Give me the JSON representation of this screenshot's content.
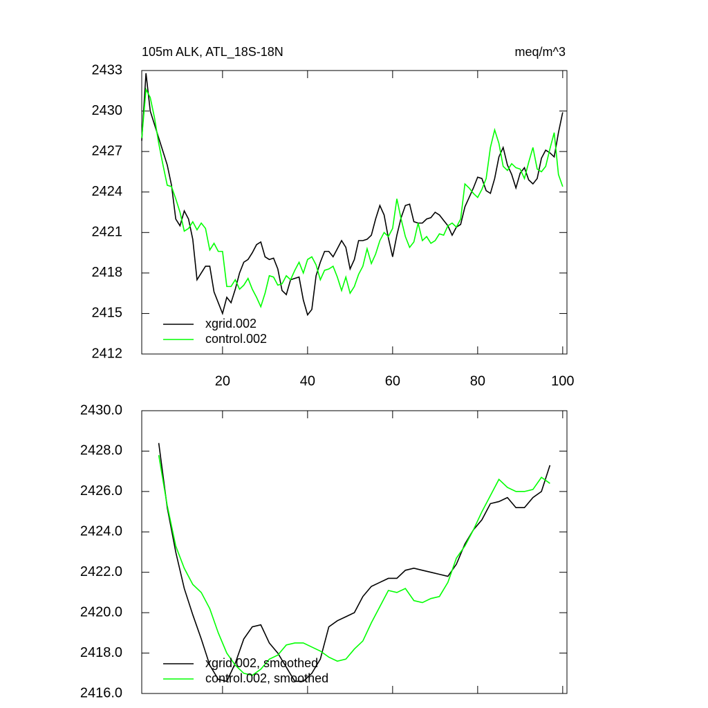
{
  "chart_data": [
    {
      "type": "line",
      "title": "105m ALK, ATL_18S-18N",
      "units": "meq/m^3",
      "x": [
        1,
        2,
        3,
        4,
        5,
        6,
        7,
        8,
        9,
        10,
        11,
        12,
        13,
        14,
        15,
        16,
        17,
        18,
        19,
        20,
        21,
        22,
        23,
        24,
        25,
        26,
        27,
        28,
        29,
        30,
        31,
        32,
        33,
        34,
        35,
        36,
        37,
        38,
        39,
        40,
        41,
        42,
        43,
        44,
        45,
        46,
        47,
        48,
        49,
        50,
        51,
        52,
        53,
        54,
        55,
        56,
        57,
        58,
        59,
        60,
        61,
        62,
        63,
        64,
        65,
        66,
        67,
        68,
        69,
        70,
        71,
        72,
        73,
        74,
        75,
        76,
        77,
        78,
        79,
        80,
        81,
        82,
        83,
        84,
        85,
        86,
        87,
        88,
        89,
        90,
        91,
        92,
        93,
        94,
        95,
        96,
        97,
        98,
        99,
        100
      ],
      "series": [
        {
          "name": "xgrid.002",
          "color": "#000000",
          "values": [
            2427.8,
            2432.8,
            2430,
            2429,
            2428,
            2427,
            2426,
            2424.5,
            2422,
            2421.5,
            2422.6,
            2422,
            2420.5,
            2417.5,
            2418,
            2418.5,
            2418.5,
            2416.6,
            2415.8,
            2415,
            2416.2,
            2415.8,
            2416.8,
            2418,
            2418.8,
            2419,
            2419.5,
            2420.1,
            2420.3,
            2419.2,
            2419,
            2419.1,
            2418.3,
            2416.7,
            2416.4,
            2417.5,
            2417.6,
            2417.7,
            2416,
            2414.9,
            2415.3,
            2417.8,
            2418.8,
            2419.6,
            2419.6,
            2419.2,
            2419.8,
            2420.4,
            2419.9,
            2418.3,
            2419,
            2420.4,
            2420.4,
            2420.5,
            2420.8,
            2422,
            2423,
            2422.3,
            2420.6,
            2419.2,
            2420.8,
            2422.1,
            2423,
            2423.1,
            2421.8,
            2421.7,
            2421.7,
            2422,
            2422.1,
            2422.5,
            2422.3,
            2421.9,
            2421.5,
            2420.8,
            2421.4,
            2421.6,
            2422.9,
            2423.6,
            2424.3,
            2425.1,
            2425,
            2424.1,
            2423.9,
            2425,
            2426.6,
            2427.3,
            2426,
            2425.3,
            2424.3,
            2425.4,
            2425.8,
            2424.9,
            2424.6,
            2425,
            2426.5,
            2427.1,
            2426.9,
            2426.6,
            2428.4,
            2429.9
          ]
        },
        {
          "name": "control.002",
          "color": "#00ff00",
          "values": [
            2428,
            2431.6,
            2431,
            2429.5,
            2427.6,
            2426,
            2424.5,
            2424.4,
            2423.5,
            2422.5,
            2421.1,
            2421.3,
            2421.8,
            2421.2,
            2421.7,
            2421.3,
            2419.7,
            2420.2,
            2419.6,
            2419.6,
            2417,
            2417,
            2417.5,
            2416.8,
            2417.1,
            2417.6,
            2416.8,
            2416.2,
            2415.5,
            2416.5,
            2417.8,
            2417.7,
            2417.1,
            2417.2,
            2417.8,
            2417.5,
            2418.2,
            2418.8,
            2418,
            2419,
            2419.2,
            2418.6,
            2417.5,
            2418.2,
            2418.3,
            2418.5,
            2417.7,
            2416.7,
            2417.7,
            2416.5,
            2417,
            2417.9,
            2418.5,
            2419.8,
            2418.7,
            2419.4,
            2420.4,
            2421,
            2420.7,
            2421.3,
            2423.5,
            2422,
            2420.7,
            2419.9,
            2420.3,
            2421.7,
            2420.4,
            2420.7,
            2420.2,
            2420.4,
            2420.9,
            2420.8,
            2421.5,
            2421.7,
            2421.4,
            2422,
            2424.6,
            2424.3,
            2423.9,
            2423.6,
            2424.2,
            2425,
            2427.3,
            2428.6,
            2427.6,
            2425.9,
            2425.6,
            2426.1,
            2425.8,
            2425.7,
            2425,
            2426.2,
            2427.3,
            2425.7,
            2425.5,
            2425.9,
            2427.2,
            2428.4,
            2425.3,
            2424.4
          ]
        }
      ],
      "xlim": [
        1,
        101
      ],
      "xticks": [
        20,
        40,
        60,
        80,
        100
      ],
      "xtick_labels": true,
      "ylim": [
        2412,
        2433
      ],
      "yticks": [
        2412,
        2415,
        2418,
        2421,
        2424,
        2427,
        2430,
        2433
      ],
      "legend": "lower left"
    },
    {
      "type": "line",
      "x": [
        5,
        7,
        9,
        11,
        13,
        15,
        17,
        19,
        21,
        23,
        25,
        27,
        29,
        31,
        33,
        35,
        37,
        39,
        41,
        43,
        45,
        47,
        49,
        51,
        53,
        55,
        57,
        59,
        61,
        63,
        65,
        67,
        69,
        71,
        73,
        75,
        77,
        79,
        81,
        83,
        85,
        87,
        89,
        91,
        93,
        95,
        97
      ],
      "series": [
        {
          "name": "xgrid.002, smoothed",
          "color": "#000000",
          "values": [
            2428.4,
            2425.2,
            2423,
            2421.2,
            2419.9,
            2418.7,
            2417.4,
            2416.7,
            2416.6,
            2417.5,
            2418.7,
            2419.3,
            2419.4,
            2418.5,
            2418,
            2417.3,
            2416.6,
            2416.6,
            2417,
            2417.7,
            2419.3,
            2419.6,
            2419.8,
            2420,
            2420.8,
            2421.3,
            2421.5,
            2421.7,
            2421.7,
            2422.1,
            2422.2,
            2422.1,
            2422,
            2421.9,
            2421.8,
            2422.4,
            2423.4,
            2424.1,
            2424.6,
            2425.4,
            2425.5,
            2425.7,
            2425.2,
            2425.2,
            2425.7,
            2426,
            2427.3
          ]
        },
        {
          "name": "control.002, smoothed",
          "color": "#00ff00",
          "values": [
            2427.8,
            2425.3,
            2423.3,
            2422.2,
            2421.4,
            2421,
            2420.2,
            2419,
            2418,
            2417.4,
            2417,
            2416.9,
            2417.2,
            2417.7,
            2417.9,
            2418.4,
            2418.5,
            2418.5,
            2418.3,
            2418.1,
            2417.8,
            2417.6,
            2417.7,
            2418.2,
            2418.6,
            2419.5,
            2420.3,
            2421.1,
            2421,
            2421.2,
            2420.6,
            2420.5,
            2420.7,
            2420.8,
            2421.5,
            2422.7,
            2423.3,
            2424.1,
            2425,
            2425.8,
            2426.6,
            2426.2,
            2426,
            2426,
            2426.1,
            2426.7,
            2426.4
          ]
        }
      ],
      "xlim": [
        1,
        101
      ],
      "xticks": [
        20,
        40,
        60,
        80,
        100
      ],
      "xtick_labels": false,
      "ylim": [
        2416,
        2430
      ],
      "yticks": [
        {
          "value": 2416,
          "label": "2416.0"
        },
        {
          "value": 2418,
          "label": "2418.0"
        },
        {
          "value": 2420,
          "label": "2420.0"
        },
        {
          "value": 2422,
          "label": "2422.0"
        },
        {
          "value": 2424,
          "label": "2424.0"
        },
        {
          "value": 2426,
          "label": "2426.0"
        },
        {
          "value": 2428,
          "label": "2428.0"
        },
        {
          "value": 2430,
          "label": "2430.0"
        }
      ],
      "legend": "lower left"
    }
  ]
}
